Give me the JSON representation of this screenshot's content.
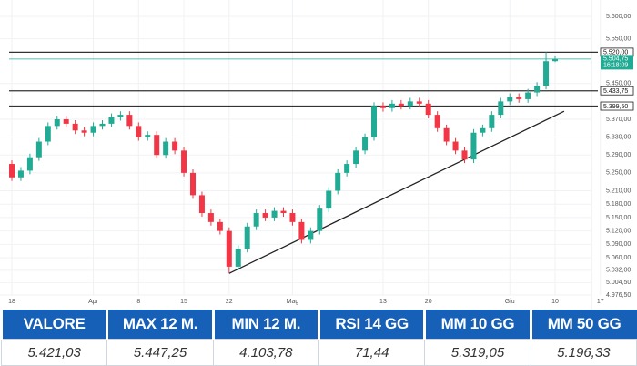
{
  "chart_data": {
    "type": "candlestick",
    "categories": [
      "18",
      null,
      null,
      null,
      null,
      null,
      null,
      null,
      null,
      "Apr",
      null,
      null,
      null,
      null,
      "8",
      null,
      null,
      null,
      null,
      "15",
      null,
      null,
      null,
      null,
      "22",
      null,
      null,
      null,
      null,
      null,
      null,
      "Mag",
      null,
      null,
      null,
      null,
      null,
      null,
      null,
      null,
      null,
      "13",
      null,
      null,
      null,
      null,
      "20",
      null,
      null,
      null,
      null,
      null,
      null,
      null,
      null,
      "Giu",
      null,
      null,
      null,
      null,
      "10",
      null,
      null,
      null,
      null,
      "17"
    ],
    "open": [
      5270,
      5240,
      5255,
      5285,
      5320,
      5355,
      5370,
      5360,
      5345,
      5340,
      5355,
      5360,
      5375,
      5380,
      5355,
      5330,
      5335,
      5290,
      5320,
      5300,
      5250,
      5200,
      5160,
      5140,
      5120,
      5040,
      5080,
      5130,
      5160,
      5150,
      5165,
      5160,
      5140,
      5100,
      5120,
      5170,
      5210,
      5250,
      5270,
      5300,
      5330,
      5400,
      5395,
      5405,
      5400,
      5410,
      5405,
      5380,
      5350,
      5320,
      5300,
      5280,
      5340,
      5350,
      5380,
      5410,
      5420,
      5415,
      5430,
      5445,
      5500,
      null,
      null,
      null,
      null,
      null
    ],
    "high": [
      5278,
      5263,
      5293,
      5328,
      5363,
      5378,
      5378,
      5368,
      5353,
      5363,
      5368,
      5383,
      5388,
      5388,
      5363,
      5343,
      5343,
      5328,
      5328,
      5308,
      5258,
      5208,
      5168,
      5148,
      5128,
      5088,
      5138,
      5168,
      5168,
      5173,
      5173,
      5168,
      5148,
      5128,
      5178,
      5218,
      5258,
      5278,
      5308,
      5338,
      5408,
      5408,
      5413,
      5413,
      5418,
      5418,
      5413,
      5388,
      5358,
      5328,
      5308,
      5348,
      5358,
      5388,
      5418,
      5428,
      5428,
      5438,
      5453,
      5520,
      5512,
      null,
      null,
      null,
      null,
      null
    ],
    "low": [
      5232,
      5232,
      5247,
      5277,
      5312,
      5347,
      5352,
      5337,
      5332,
      5332,
      5347,
      5352,
      5367,
      5347,
      5322,
      5322,
      5282,
      5282,
      5292,
      5242,
      5192,
      5152,
      5132,
      5112,
      5025,
      5032,
      5072,
      5122,
      5142,
      5142,
      5152,
      5132,
      5092,
      5092,
      5112,
      5162,
      5202,
      5242,
      5262,
      5292,
      5322,
      5387,
      5387,
      5392,
      5392,
      5397,
      5372,
      5342,
      5312,
      5292,
      5272,
      5272,
      5332,
      5342,
      5372,
      5402,
      5407,
      5407,
      5422,
      5437,
      5498,
      null,
      null,
      null,
      null,
      null
    ],
    "close": [
      5240,
      5255,
      5285,
      5320,
      5355,
      5370,
      5360,
      5345,
      5340,
      5355,
      5360,
      5375,
      5380,
      5355,
      5330,
      5335,
      5290,
      5320,
      5300,
      5250,
      5200,
      5160,
      5140,
      5120,
      5040,
      5080,
      5130,
      5160,
      5150,
      5165,
      5160,
      5140,
      5100,
      5120,
      5170,
      5210,
      5250,
      5270,
      5300,
      5330,
      5400,
      5395,
      5405,
      5400,
      5410,
      5405,
      5380,
      5350,
      5320,
      5300,
      5280,
      5340,
      5350,
      5380,
      5410,
      5420,
      5415,
      5430,
      5445,
      5500,
      5504.75,
      null,
      null,
      null,
      null,
      null
    ],
    "up_color": "#22ab94",
    "down_color": "#f23645",
    "ylim": [
      4944,
      5637
    ],
    "yticks": [
      {
        "value": 5600,
        "label": "5.600,00"
      },
      {
        "value": 5550,
        "label": "5.550,00"
      },
      {
        "value": 5450,
        "label": "5.450,00"
      },
      {
        "value": 5370,
        "label": "5.370,00"
      },
      {
        "value": 5330,
        "label": "5.330,00"
      },
      {
        "value": 5290,
        "label": "5.290,00"
      },
      {
        "value": 5250,
        "label": "5.250,00"
      },
      {
        "value": 5210,
        "label": "5.210,00"
      },
      {
        "value": 5180,
        "label": "5.180,00"
      },
      {
        "value": 5150,
        "label": "5.150,00"
      },
      {
        "value": 5120,
        "label": "5.120,00"
      },
      {
        "value": 5090,
        "label": "5.090,00"
      },
      {
        "value": 5060,
        "label": "5.060,00"
      },
      {
        "value": 5032,
        "label": "5.032,00"
      },
      {
        "value": 5004.5,
        "label": "5.004,50"
      },
      {
        "value": 4976.5,
        "label": "4.976,50"
      }
    ],
    "grid": true,
    "levels": [
      {
        "value": 5520,
        "label": "5.520,00"
      },
      {
        "value": 5433.75,
        "label": "5.433,75"
      },
      {
        "value": 5399.5,
        "label": "5.399,50"
      }
    ],
    "last_price": {
      "value": 5504.75,
      "label": "5.504,75"
    },
    "last_time": "16:18:09",
    "trendline": {
      "x": [
        24,
        61
      ],
      "y": [
        5025,
        5388
      ]
    }
  },
  "table": {
    "header": [
      "VALORE",
      "MAX 12 M.",
      "MIN 12 M.",
      "RSI 14 GG",
      "MM 10 GG",
      "MM 50 GG"
    ],
    "rows": [
      [
        "5.421,03",
        "5.447,25",
        "4.103,78",
        "71,44",
        "5.319,05",
        "5.196,33"
      ]
    ]
  }
}
